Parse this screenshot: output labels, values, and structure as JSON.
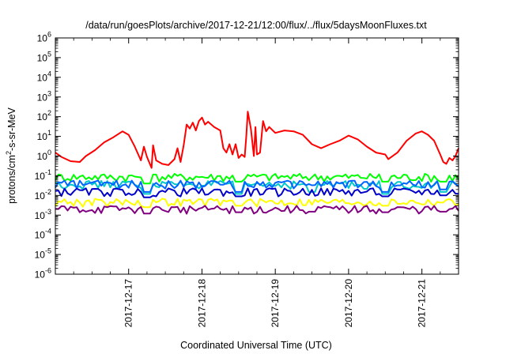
{
  "chart_data": {
    "type": "line",
    "title": "/data/run/goesPlots/archive/2017-12-21/12:00/flux/../flux/5daysMoonFluxes.txt",
    "xlabel": "Coordinated Universal Time (UTC)",
    "ylabel": "protons/cm²-s-sr-MeV",
    "y_scale": "log",
    "ylim": [
      1e-06,
      1000000.0
    ],
    "xlim": [
      "2017-12-16T00:00",
      "2017-12-21T12:00"
    ],
    "x_ticks": [
      "2017-12-17",
      "2017-12-18",
      "2017-12-19",
      "2017-12-20",
      "2017-12-21"
    ],
    "y_ticks": [
      {
        "base": "10",
        "exp": "-6"
      },
      {
        "base": "10",
        "exp": "-5"
      },
      {
        "base": "10",
        "exp": "-4"
      },
      {
        "base": "10",
        "exp": "-3"
      },
      {
        "base": "10",
        "exp": "-2"
      },
      {
        "base": "10",
        "exp": "-1"
      },
      {
        "base": "10",
        "exp": "0"
      },
      {
        "base": "10",
        "exp": "1"
      },
      {
        "base": "10",
        "exp": "2"
      },
      {
        "base": "10",
        "exp": "3"
      },
      {
        "base": "10",
        "exp": "4"
      },
      {
        "base": "10",
        "exp": "5"
      },
      {
        "base": "10",
        "exp": "6"
      }
    ],
    "grid": false,
    "series": [
      {
        "color": "#ff0000",
        "points": [
          [
            "2017-12-16T00:00",
            1.5
          ],
          [
            "2017-12-16T02:00",
            0.9
          ],
          [
            "2017-12-16T05:00",
            0.55
          ],
          [
            "2017-12-16T08:00",
            0.5
          ],
          [
            "2017-12-16T10:00",
            1.0
          ],
          [
            "2017-12-16T13:00",
            2.0
          ],
          [
            "2017-12-16T16:00",
            5
          ],
          [
            "2017-12-16T19:00",
            9
          ],
          [
            "2017-12-16T22:00",
            18
          ],
          [
            "2017-12-17T00:00",
            12
          ],
          [
            "2017-12-17T02:00",
            3
          ],
          [
            "2017-12-17T04:00",
            0.6
          ],
          [
            "2017-12-17T05:00",
            3
          ],
          [
            "2017-12-17T06:00",
            0.9
          ],
          [
            "2017-12-17T07:30",
            0.25
          ],
          [
            "2017-12-17T08:00",
            3.5
          ],
          [
            "2017-12-17T09:00",
            0.6
          ],
          [
            "2017-12-17T11:00",
            0.4
          ],
          [
            "2017-12-17T13:00",
            0.35
          ],
          [
            "2017-12-17T15:00",
            0.7
          ],
          [
            "2017-12-17T16:00",
            2.5
          ],
          [
            "2017-12-17T17:00",
            0.5
          ],
          [
            "2017-12-17T18:00",
            3.5
          ],
          [
            "2017-12-17T19:00",
            40
          ],
          [
            "2017-12-17T20:00",
            25
          ],
          [
            "2017-12-17T21:00",
            50
          ],
          [
            "2017-12-17T22:00",
            20
          ],
          [
            "2017-12-17T23:00",
            60
          ],
          [
            "2017-12-18T00:00",
            90
          ],
          [
            "2017-12-18T01:00",
            40
          ],
          [
            "2017-12-18T02:00",
            55
          ],
          [
            "2017-12-18T04:00",
            30
          ],
          [
            "2017-12-18T06:00",
            20
          ],
          [
            "2017-12-18T07:00",
            2.5
          ],
          [
            "2017-12-18T08:00",
            1.5
          ],
          [
            "2017-12-18T09:00",
            4
          ],
          [
            "2017-12-18T10:00",
            1.2
          ],
          [
            "2017-12-18T11:00",
            4
          ],
          [
            "2017-12-18T12:00",
            0.8
          ],
          [
            "2017-12-18T13:00",
            1.2
          ],
          [
            "2017-12-18T14:00",
            0.9
          ],
          [
            "2017-12-18T14:30",
            10
          ],
          [
            "2017-12-18T15:00",
            180
          ],
          [
            "2017-12-18T16:00",
            25
          ],
          [
            "2017-12-18T17:00",
            1.0
          ],
          [
            "2017-12-18T17:30",
            30
          ],
          [
            "2017-12-18T18:00",
            1.2
          ],
          [
            "2017-12-18T19:00",
            1.5
          ],
          [
            "2017-12-18T20:00",
            60
          ],
          [
            "2017-12-18T21:00",
            18
          ],
          [
            "2017-12-18T22:00",
            30
          ],
          [
            "2017-12-19T00:00",
            15
          ],
          [
            "2017-12-19T03:00",
            20
          ],
          [
            "2017-12-19T06:00",
            18
          ],
          [
            "2017-12-19T09:00",
            12
          ],
          [
            "2017-12-19T12:00",
            4
          ],
          [
            "2017-12-19T15:00",
            2.5
          ],
          [
            "2017-12-19T18:00",
            4
          ],
          [
            "2017-12-19T21:00",
            6
          ],
          [
            "2017-12-20T00:00",
            11
          ],
          [
            "2017-12-20T03:00",
            7
          ],
          [
            "2017-12-20T06:00",
            3
          ],
          [
            "2017-12-20T09:00",
            1.5
          ],
          [
            "2017-12-20T12:00",
            1.2
          ],
          [
            "2017-12-20T13:00",
            0.7
          ],
          [
            "2017-12-20T16:00",
            1.5
          ],
          [
            "2017-12-20T19:00",
            6
          ],
          [
            "2017-12-20T22:00",
            14
          ],
          [
            "2017-12-21T00:00",
            18
          ],
          [
            "2017-12-21T02:00",
            12
          ],
          [
            "2017-12-21T04:00",
            6
          ],
          [
            "2017-12-21T06:00",
            1.2
          ],
          [
            "2017-12-21T07:00",
            0.5
          ],
          [
            "2017-12-21T08:00",
            0.4
          ],
          [
            "2017-12-21T09:00",
            0.8
          ],
          [
            "2017-12-21T10:00",
            0.6
          ],
          [
            "2017-12-21T11:00",
            1.0
          ],
          [
            "2017-12-21T12:00",
            2.5
          ]
        ]
      },
      {
        "color": "#00ff00",
        "base": 0.09,
        "dips": [
          [
            "2017-12-17T06:00",
            0.04
          ],
          [
            "2017-12-18T12:00",
            0.05
          ],
          [
            "2017-12-20T12:00",
            0.05
          ],
          [
            "2017-12-21T07:00",
            0.05
          ]
        ]
      },
      {
        "color": "#00c8c8",
        "base": 0.038,
        "dips": [
          [
            "2017-12-17T06:00",
            0.012
          ],
          [
            "2017-12-18T12:00",
            0.012
          ],
          [
            "2017-12-19T12:00",
            0.015
          ],
          [
            "2017-12-20T12:00",
            0.012
          ],
          [
            "2017-12-21T07:00",
            0.015
          ]
        ]
      },
      {
        "color": "#0064ff",
        "base": 0.04,
        "dips": [
          [
            "2017-12-17T06:00",
            0.015
          ],
          [
            "2017-12-18T12:00",
            0.015
          ],
          [
            "2017-12-20T12:00",
            0.015
          ],
          [
            "2017-12-21T07:00",
            0.02
          ]
        ]
      },
      {
        "color": "#0000c8",
        "base": 0.016,
        "dips": [
          [
            "2017-12-17T06:00",
            0.008
          ],
          [
            "2017-12-18T12:00",
            0.009
          ],
          [
            "2017-12-20T12:00",
            0.009
          ],
          [
            "2017-12-21T07:00",
            0.01
          ]
        ]
      },
      {
        "color": "#ffff00",
        "base": 0.0048,
        "dips": [
          [
            "2017-12-17T06:00",
            0.0025
          ],
          [
            "2017-12-18T12:00",
            0.003
          ],
          [
            "2017-12-20T12:00",
            0.003
          ]
        ]
      },
      {
        "color": "#800080",
        "base": 0.0021,
        "dips": [
          [
            "2017-12-17T06:00",
            0.0012
          ],
          [
            "2017-12-18T12:00",
            0.0014
          ],
          [
            "2017-12-19T12:00",
            0.0015
          ],
          [
            "2017-12-20T12:00",
            0.0014
          ],
          [
            "2017-12-21T07:00",
            0.0015
          ]
        ]
      }
    ]
  }
}
